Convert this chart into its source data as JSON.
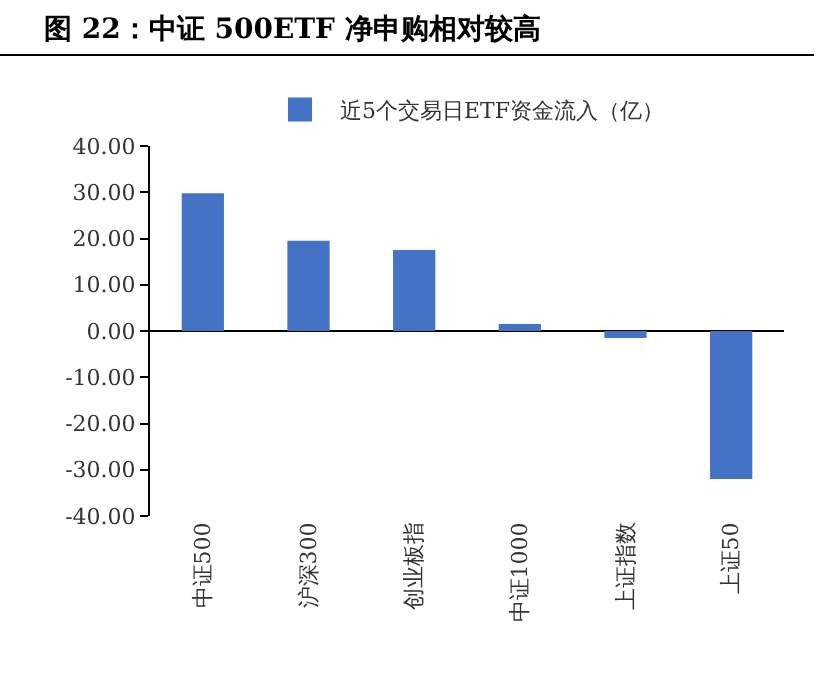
{
  "chart_data": {
    "type": "bar",
    "title": "图 22：中证 500ETF 净申购相对较高",
    "categories": [
      "中证500",
      "沪深300",
      "创业板指",
      "中证1000",
      "上证指数",
      "上证50"
    ],
    "series": [
      {
        "name": "近5个交易日ETF资金流入（亿）",
        "color": "#4472c4",
        "values": [
          29.8,
          19.5,
          17.5,
          1.5,
          -1.5,
          -32
        ]
      }
    ],
    "ylim": [
      -40,
      40
    ],
    "yticks": [
      {
        "value": -40,
        "label": "-40.00"
      },
      {
        "value": -30,
        "label": "-30.00"
      },
      {
        "value": -20,
        "label": "-20.00"
      },
      {
        "value": -10,
        "label": "-10.00"
      },
      {
        "value": 0,
        "label": "0.00"
      },
      {
        "value": 10,
        "label": "10.00"
      },
      {
        "value": 20,
        "label": "20.00"
      },
      {
        "value": 30,
        "label": "30.00"
      },
      {
        "value": 40,
        "label": "40.00"
      }
    ],
    "legend": "top"
  }
}
